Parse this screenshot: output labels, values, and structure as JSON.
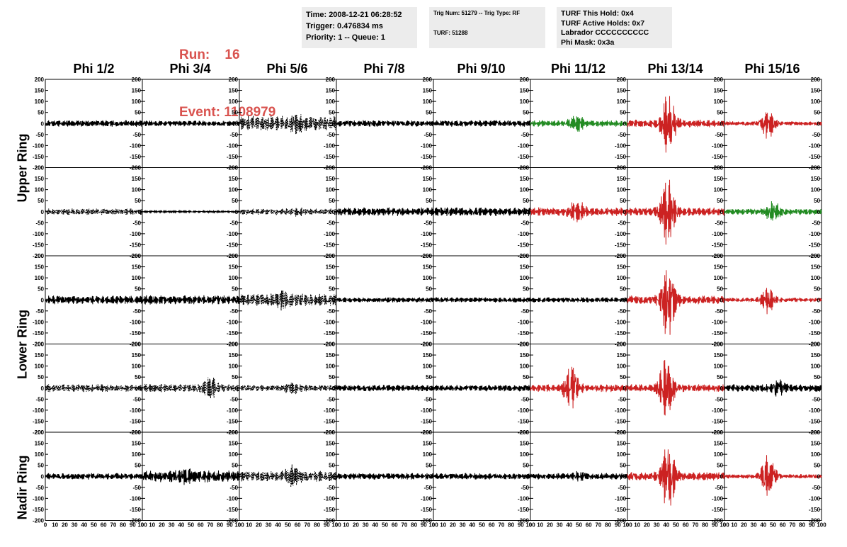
{
  "header": {
    "run_label": "Run:",
    "run_value": "16",
    "event_label": "Event:",
    "event_value": "1108979",
    "info_box_1": [
      "Time: 2008-12-21 06:28:52",
      "Trigger: 0.476834 ms",
      "Priority: 1 -- Queue: 1"
    ],
    "info_box_2": [
      "Trig Num: 51279 -- Trig Type: RF",
      "TURF: 51288"
    ],
    "info_box_3": [
      "TURF This Hold: 0x4",
      "TURF Active Holds: 0x7",
      "Labrador CCCCCCCCCC",
      "Phi Mask: 0x3a"
    ]
  },
  "columns": [
    "Phi 1/2",
    "Phi 3/4",
    "Phi 5/6",
    "Phi 7/8",
    "Phi 9/10",
    "Phi 11/12",
    "Phi 13/14",
    "Phi 15/16"
  ],
  "ring_labels": [
    "Upper Ring",
    "Lower Ring",
    "Nadir Ring"
  ],
  "colors": {
    "normal": "#000000",
    "triggered": "#cc2222",
    "masked": "#228b22",
    "panel_bg": "#ececec",
    "title": "#d9534f"
  },
  "chart_data": {
    "type": "line",
    "xlim": [
      0,
      100
    ],
    "ylim": [
      -200,
      200
    ],
    "x_ticks": [
      0,
      10,
      20,
      30,
      40,
      50,
      60,
      70,
      80,
      90,
      100
    ],
    "x_tick_labels": [
      "0",
      "10",
      "20",
      "30",
      "40",
      "50",
      "60",
      "70",
      "80",
      "90",
      "100"
    ],
    "y_ticks": [
      -200,
      -150,
      -100,
      -50,
      0,
      50,
      100,
      150,
      200
    ],
    "y_tick_labels": [
      "-200",
      "-150",
      "-100",
      "-50",
      "0",
      "50",
      "100",
      "150",
      "200"
    ],
    "grid": false,
    "panels": [
      {
        "row": 0,
        "col": 0,
        "color": "black",
        "dashed": false,
        "amp": 15,
        "peak": 0,
        "burst_center": 50
      },
      {
        "row": 0,
        "col": 1,
        "color": "black",
        "dashed": false,
        "amp": 13,
        "peak": 0,
        "burst_center": 50
      },
      {
        "row": 0,
        "col": 2,
        "color": "black",
        "dashed": true,
        "amp": 35,
        "peak": 20,
        "burst_center": 60
      },
      {
        "row": 0,
        "col": 3,
        "color": "black",
        "dashed": false,
        "amp": 15,
        "peak": 0,
        "burst_center": 50
      },
      {
        "row": 0,
        "col": 4,
        "color": "black",
        "dashed": false,
        "amp": 15,
        "peak": 0,
        "burst_center": 50
      },
      {
        "row": 0,
        "col": 5,
        "color": "green",
        "dashed": false,
        "amp": 15,
        "peak": 35,
        "burst_center": 48
      },
      {
        "row": 0,
        "col": 6,
        "color": "red",
        "dashed": false,
        "amp": 18,
        "peak": 130,
        "burst_center": 42
      },
      {
        "row": 0,
        "col": 7,
        "color": "red",
        "dashed": false,
        "amp": 10,
        "peak": 65,
        "burst_center": 45
      },
      {
        "row": 1,
        "col": 0,
        "color": "black",
        "dashed": true,
        "amp": 15,
        "peak": 0,
        "burst_center": 50
      },
      {
        "row": 1,
        "col": 1,
        "color": "black",
        "dashed": false,
        "amp": 4,
        "peak": 0,
        "burst_center": 50
      },
      {
        "row": 1,
        "col": 2,
        "color": "black",
        "dashed": true,
        "amp": 15,
        "peak": 10,
        "burst_center": 60
      },
      {
        "row": 1,
        "col": 3,
        "color": "black",
        "dashed": false,
        "amp": 20,
        "peak": 0,
        "burst_center": 50
      },
      {
        "row": 1,
        "col": 4,
        "color": "black",
        "dashed": false,
        "amp": 20,
        "peak": 0,
        "burst_center": 50
      },
      {
        "row": 1,
        "col": 5,
        "color": "red",
        "dashed": false,
        "amp": 20,
        "peak": 45,
        "burst_center": 48
      },
      {
        "row": 1,
        "col": 6,
        "color": "red",
        "dashed": false,
        "amp": 20,
        "peak": 150,
        "burst_center": 41
      },
      {
        "row": 1,
        "col": 7,
        "color": "green",
        "dashed": false,
        "amp": 15,
        "peak": 40,
        "burst_center": 50
      },
      {
        "row": 2,
        "col": 0,
        "color": "black",
        "dashed": false,
        "amp": 20,
        "peak": 0,
        "burst_center": 50
      },
      {
        "row": 2,
        "col": 1,
        "color": "black",
        "dashed": false,
        "amp": 22,
        "peak": 0,
        "burst_center": 50
      },
      {
        "row": 2,
        "col": 2,
        "color": "black",
        "dashed": true,
        "amp": 30,
        "peak": 25,
        "burst_center": 45
      },
      {
        "row": 2,
        "col": 3,
        "color": "black",
        "dashed": false,
        "amp": 12,
        "peak": 0,
        "burst_center": 50
      },
      {
        "row": 2,
        "col": 4,
        "color": "black",
        "dashed": false,
        "amp": 12,
        "peak": 0,
        "burst_center": 50
      },
      {
        "row": 2,
        "col": 5,
        "color": "black",
        "dashed": false,
        "amp": 12,
        "peak": 0,
        "burst_center": 50
      },
      {
        "row": 2,
        "col": 6,
        "color": "red",
        "dashed": false,
        "amp": 20,
        "peak": 170,
        "burst_center": 42
      },
      {
        "row": 2,
        "col": 7,
        "color": "red",
        "dashed": false,
        "amp": 10,
        "peak": 60,
        "burst_center": 45
      },
      {
        "row": 3,
        "col": 0,
        "color": "black",
        "dashed": true,
        "amp": 18,
        "peak": 0,
        "burst_center": 50
      },
      {
        "row": 3,
        "col": 1,
        "color": "black",
        "dashed": true,
        "amp": 20,
        "peak": 40,
        "burst_center": 70
      },
      {
        "row": 3,
        "col": 2,
        "color": "black",
        "dashed": true,
        "amp": 15,
        "peak": 20,
        "burst_center": 55
      },
      {
        "row": 3,
        "col": 3,
        "color": "black",
        "dashed": false,
        "amp": 15,
        "peak": 0,
        "burst_center": 50
      },
      {
        "row": 3,
        "col": 4,
        "color": "black",
        "dashed": false,
        "amp": 15,
        "peak": 0,
        "burst_center": 50
      },
      {
        "row": 3,
        "col": 5,
        "color": "red",
        "dashed": false,
        "amp": 18,
        "peak": 90,
        "burst_center": 42
      },
      {
        "row": 3,
        "col": 6,
        "color": "red",
        "dashed": false,
        "amp": 18,
        "peak": 140,
        "burst_center": 40
      },
      {
        "row": 3,
        "col": 7,
        "color": "black",
        "dashed": false,
        "amp": 18,
        "peak": 25,
        "burst_center": 55
      },
      {
        "row": 4,
        "col": 0,
        "color": "black",
        "dashed": false,
        "amp": 15,
        "peak": 0,
        "burst_center": 50
      },
      {
        "row": 4,
        "col": 1,
        "color": "black",
        "dashed": false,
        "amp": 28,
        "peak": 15,
        "burst_center": 45
      },
      {
        "row": 4,
        "col": 2,
        "color": "black",
        "dashed": true,
        "amp": 25,
        "peak": 30,
        "burst_center": 55
      },
      {
        "row": 4,
        "col": 3,
        "color": "black",
        "dashed": false,
        "amp": 15,
        "peak": 0,
        "burst_center": 50
      },
      {
        "row": 4,
        "col": 4,
        "color": "black",
        "dashed": false,
        "amp": 15,
        "peak": 0,
        "burst_center": 50
      },
      {
        "row": 4,
        "col": 5,
        "color": "black",
        "dashed": false,
        "amp": 15,
        "peak": 10,
        "burst_center": 50
      },
      {
        "row": 4,
        "col": 6,
        "color": "red",
        "dashed": false,
        "amp": 20,
        "peak": 150,
        "burst_center": 42
      },
      {
        "row": 4,
        "col": 7,
        "color": "red",
        "dashed": false,
        "amp": 10,
        "peak": 95,
        "burst_center": 45
      }
    ]
  }
}
